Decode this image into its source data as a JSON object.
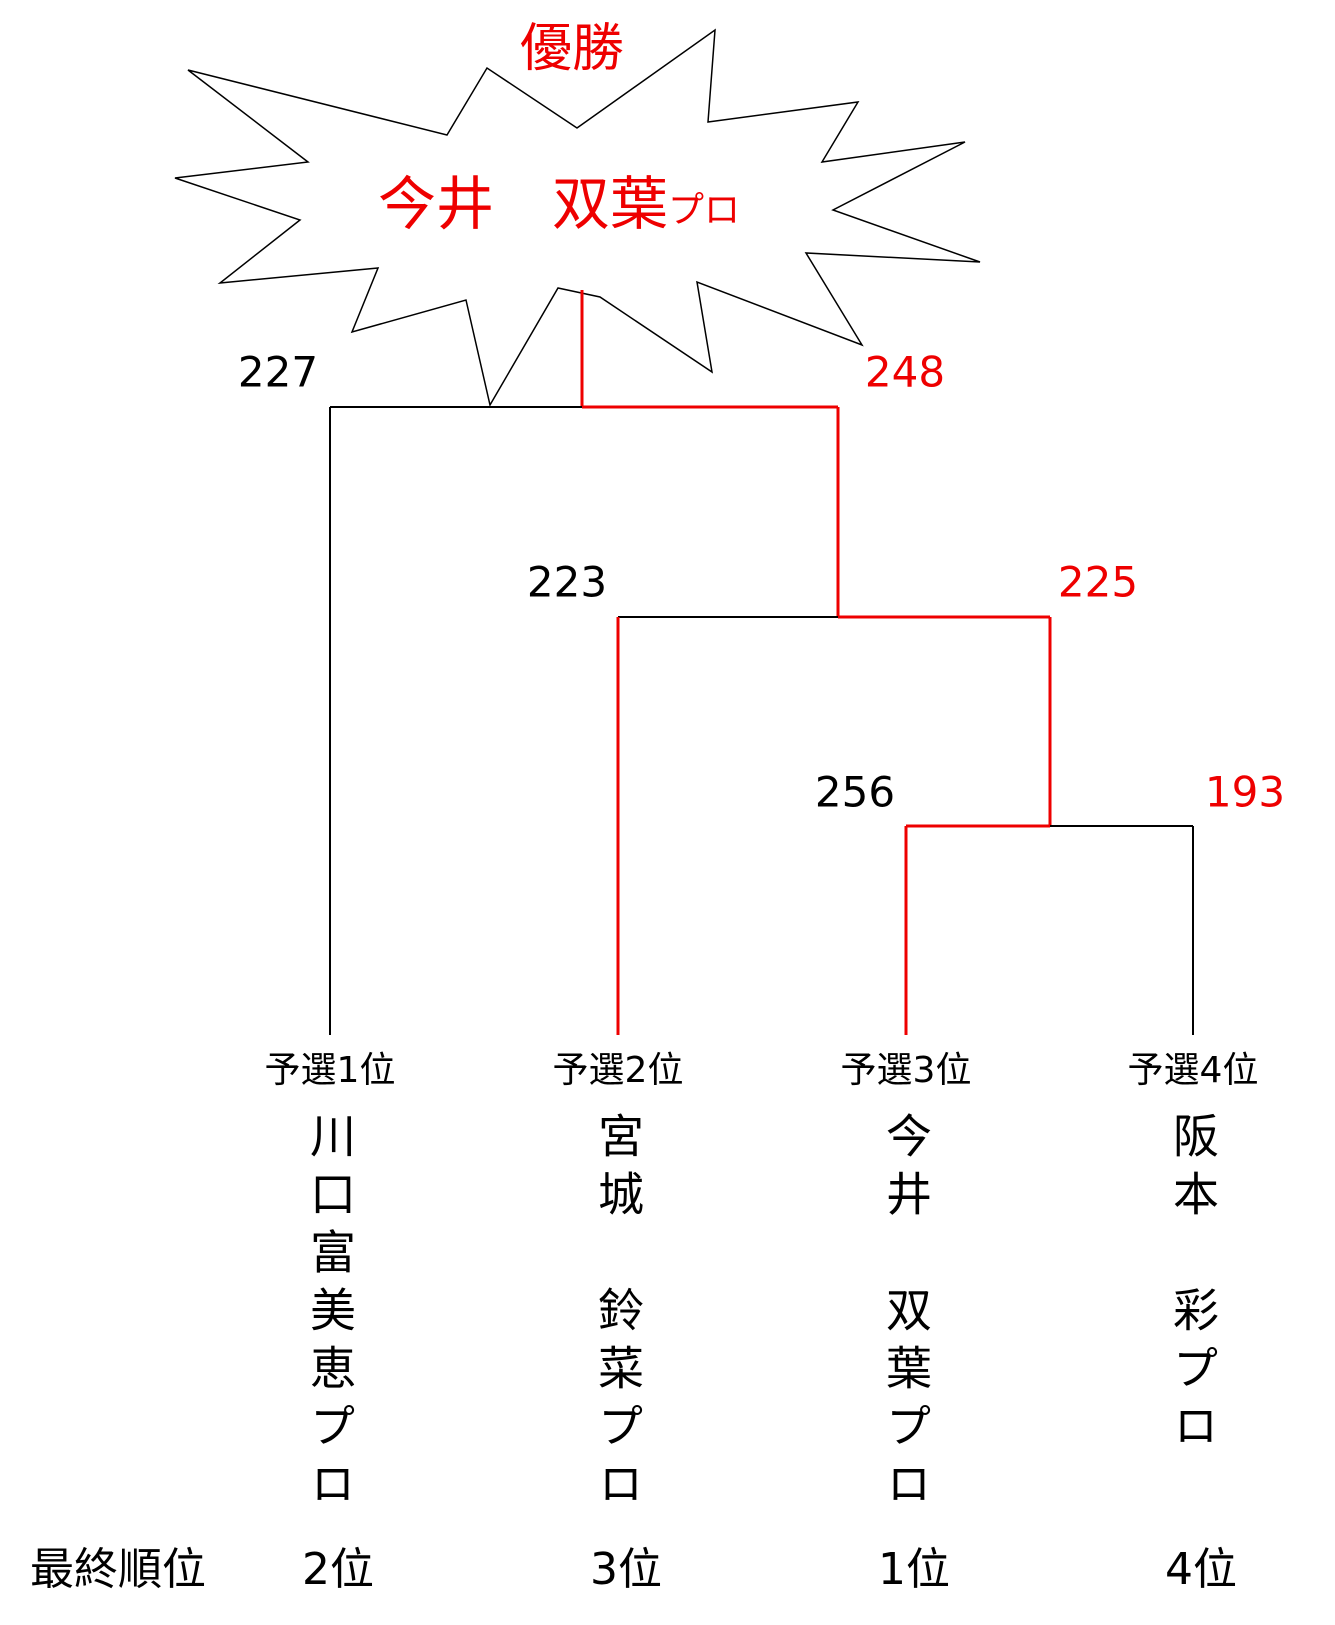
{
  "winner": {
    "heading": "優勝",
    "name": "今井　双葉",
    "suffix": "プロ"
  },
  "matches": [
    {
      "left_score": 227,
      "right_score": 248
    },
    {
      "left_score": 223,
      "right_score": 225
    },
    {
      "left_score": 256,
      "right_score": 193
    }
  ],
  "players": [
    {
      "seed": "予選1位",
      "name": "川口富美恵プロ",
      "final_rank": "2位"
    },
    {
      "seed": "予選2位",
      "name": "宮城　鈴菜プロ",
      "final_rank": "3位"
    },
    {
      "seed": "予選3位",
      "name": "今井　双葉プロ",
      "final_rank": "1位"
    },
    {
      "seed": "予選4位",
      "name": "阪本　彩プロ",
      "final_rank": "4位"
    }
  ],
  "final_rank_label": "最終順位"
}
